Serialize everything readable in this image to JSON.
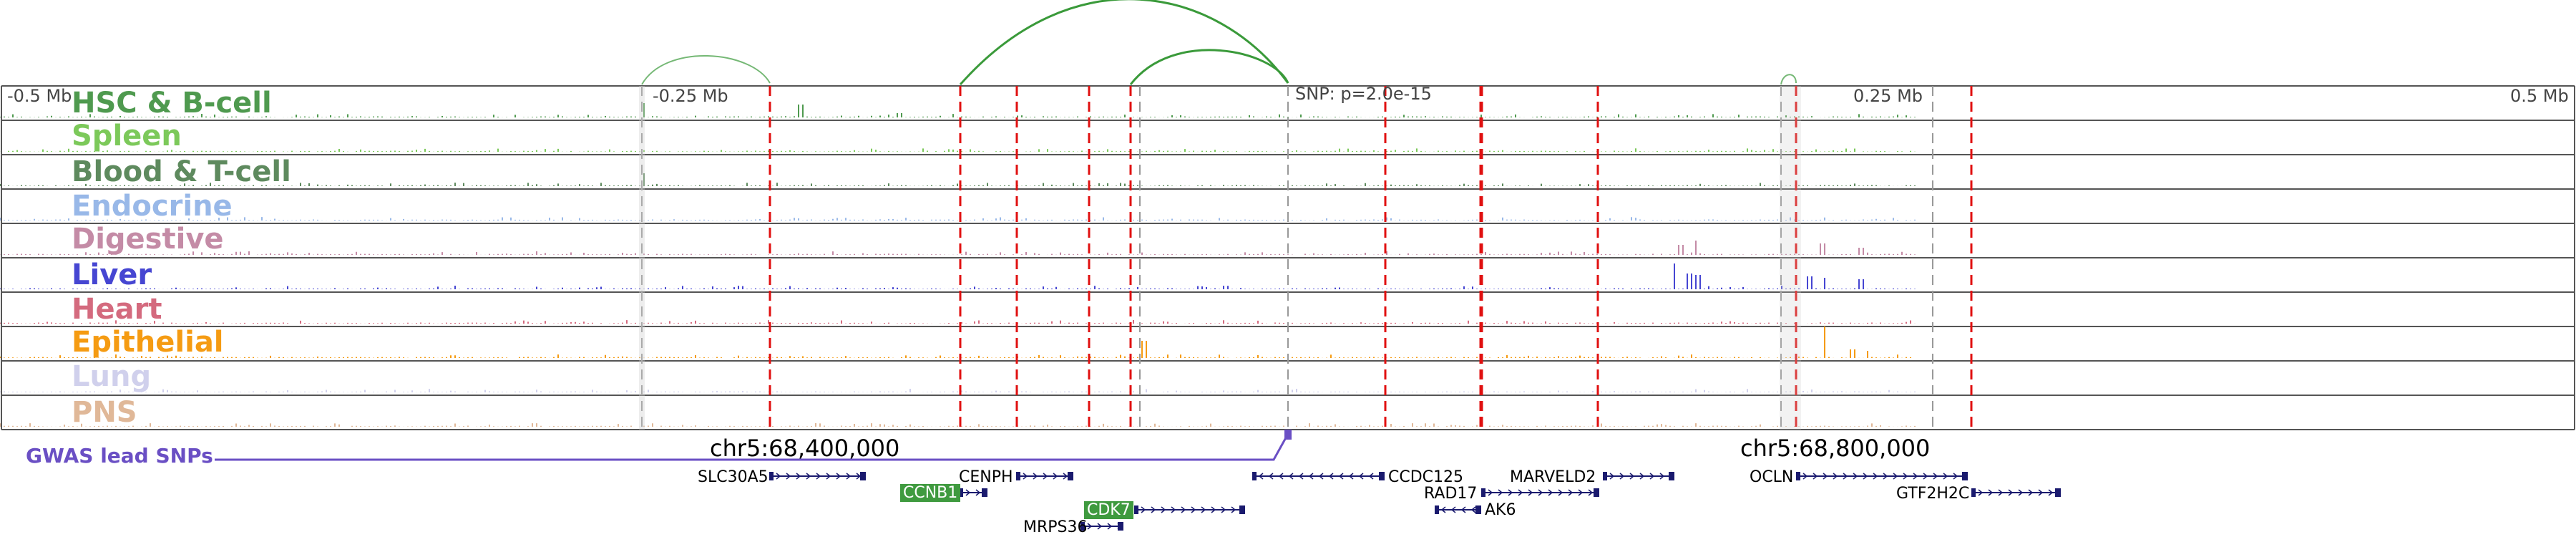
{
  "tracks": [
    {
      "name": "HSC & B-cell",
      "color": "#4f9a4f"
    },
    {
      "name": "Spleen",
      "color": "#7cc95a"
    },
    {
      "name": "Blood & T-cell",
      "color": "#5e8a5e"
    },
    {
      "name": "Endocrine",
      "color": "#98b8e8"
    },
    {
      "name": "Digestive",
      "color": "#c48ba6"
    },
    {
      "name": "Liver",
      "color": "#4646d2"
    },
    {
      "name": "Heart",
      "color": "#d46a7e"
    },
    {
      "name": "Epithelial",
      "color": "#f59b12"
    },
    {
      "name": "Lung",
      "color": "#d0d0ec"
    },
    {
      "name": "PNS",
      "color": "#e0b898"
    }
  ],
  "ruler": {
    "left": "-0.5 Mb",
    "left_mid": "-0.25 Mb",
    "right_mid": "0.25 Mb",
    "right": "0.5 Mb"
  },
  "snp_label": "SNP: p=2.0e-15",
  "coordinates": {
    "left": "chr5:68,400,000",
    "right": "chr5:68,800,000"
  },
  "gwas_label": "GWAS lead SNPs",
  "genes": [
    {
      "name": "SLC30A5",
      "highlight": false,
      "strand": ">"
    },
    {
      "name": "CENPH",
      "highlight": false,
      "strand": ">"
    },
    {
      "name": "CCNB1",
      "highlight": true,
      "strand": ">"
    },
    {
      "name": "CDK7",
      "highlight": true,
      "strand": ">"
    },
    {
      "name": "MRPS36",
      "highlight": false,
      "strand": ">"
    },
    {
      "name": "CCDC125",
      "highlight": false,
      "strand": "<"
    },
    {
      "name": "MARVELD2",
      "highlight": false,
      "strand": ">"
    },
    {
      "name": "RAD17",
      "highlight": false,
      "strand": ">"
    },
    {
      "name": "AK6",
      "highlight": false,
      "strand": "<"
    },
    {
      "name": "OCLN",
      "highlight": false,
      "strand": ">"
    },
    {
      "name": "GTF2H2C",
      "highlight": false,
      "strand": ">"
    }
  ],
  "colors": {
    "marker_red": "#e01010",
    "marker_grey": "#999999",
    "arc_green": "#3a9a3a",
    "gene_navy": "#1a1a6e",
    "gwas_purple": "#6a4fc4"
  }
}
